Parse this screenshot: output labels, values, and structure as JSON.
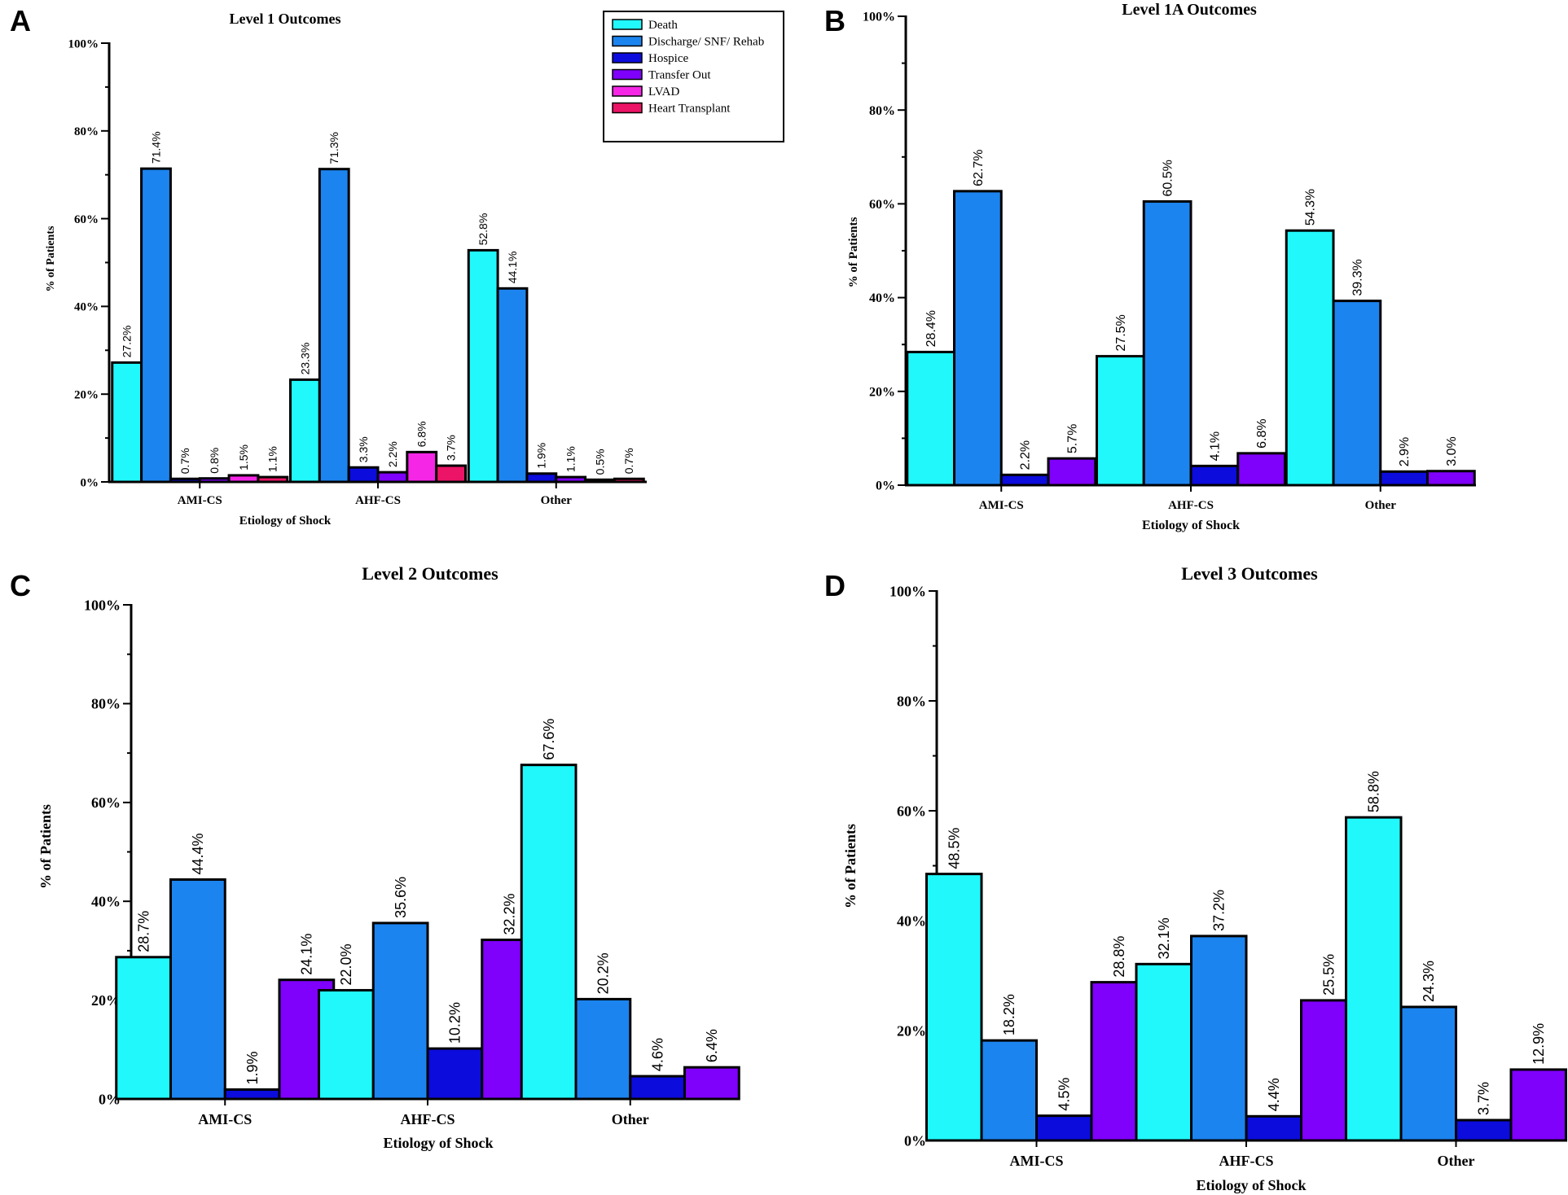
{
  "colors": {
    "Death": "#21f8fb",
    "Discharge/ SNF/ Rehab": "#1c84ef",
    "Hospice": "#0c0cdc",
    "Transfer Out": "#7f00fb",
    "LVAD": "#f526e6",
    "Heart Transplant": "#ec1466"
  },
  "chart_data": [
    {
      "panel": "A",
      "type": "bar",
      "title": "Level 1 Outcomes",
      "xlabel": "Etiology of Shock",
      "ylabel": "% of Patients",
      "ylim": [
        0,
        100
      ],
      "yticks": [
        "0%",
        "20%",
        "40%",
        "60%",
        "80%",
        "100%"
      ],
      "categories": [
        "AMI-CS",
        "AHF-CS",
        "Other"
      ],
      "series": [
        {
          "name": "Death",
          "values": [
            27.2,
            23.3,
            52.8
          ],
          "labels": [
            "27.2%",
            "23.3%",
            "52.8%"
          ]
        },
        {
          "name": "Discharge/ SNF/ Rehab",
          "values": [
            71.4,
            71.3,
            44.1
          ],
          "labels": [
            "71.4%",
            "71.3%",
            "44.1%"
          ]
        },
        {
          "name": "Hospice",
          "values": [
            0.7,
            3.3,
            1.9
          ],
          "labels": [
            "0.7%",
            "3.3%",
            "1.9%"
          ]
        },
        {
          "name": "Transfer Out",
          "values": [
            0.8,
            2.2,
            1.1
          ],
          "labels": [
            "0.8%",
            "2.2%",
            "1.1%"
          ]
        },
        {
          "name": "LVAD",
          "values": [
            1.5,
            6.8,
            0.5
          ],
          "labels": [
            "1.5%",
            "6.8%",
            "0.5%"
          ]
        },
        {
          "name": "Heart Transplant",
          "values": [
            1.1,
            3.7,
            0.7
          ],
          "labels": [
            "1.1%",
            "3.7%",
            "0.7%"
          ]
        }
      ],
      "legend": {
        "position": "top-right",
        "entries": [
          "Death",
          "Discharge/ SNF/ Rehab",
          "Hospice",
          "Transfer Out",
          "LVAD",
          "Heart Transplant"
        ]
      }
    },
    {
      "panel": "B",
      "type": "bar",
      "title": "Level 1A Outcomes",
      "xlabel": "Etiology of Shock",
      "ylabel": "% of Patients",
      "ylim": [
        0,
        100
      ],
      "yticks": [
        "0%",
        "20%",
        "40%",
        "60%",
        "80%",
        "100%"
      ],
      "categories": [
        "AMI-CS",
        "AHF-CS",
        "Other"
      ],
      "series": [
        {
          "name": "Death",
          "values": [
            28.4,
            27.5,
            54.3
          ],
          "labels": [
            "28.4%",
            "27.5%",
            "54.3%"
          ]
        },
        {
          "name": "Discharge/ SNF/ Rehab",
          "values": [
            62.7,
            60.5,
            39.3
          ],
          "labels": [
            "62.7%",
            "60.5%",
            "39.3%"
          ]
        },
        {
          "name": "Hospice",
          "values": [
            2.2,
            4.1,
            2.9
          ],
          "labels": [
            "2.2%",
            "4.1%",
            "2.9%"
          ]
        },
        {
          "name": "Transfer Out",
          "values": [
            5.7,
            6.8,
            3.0
          ],
          "labels": [
            "5.7%",
            "6.8%",
            "3.0%"
          ]
        }
      ]
    },
    {
      "panel": "C",
      "type": "bar",
      "title": "Level 2 Outcomes",
      "xlabel": "Etiology of Shock",
      "ylabel": "% of Patients",
      "ylim": [
        0,
        100
      ],
      "yticks": [
        "0%",
        "20%",
        "40%",
        "60%",
        "80%",
        "100%"
      ],
      "categories": [
        "AMI-CS",
        "AHF-CS",
        "Other"
      ],
      "series": [
        {
          "name": "Death",
          "values": [
            28.7,
            22.0,
            67.6
          ],
          "labels": [
            "28.7%",
            "22.0%",
            "67.6%"
          ]
        },
        {
          "name": "Discharge/ SNF/ Rehab",
          "values": [
            44.4,
            35.6,
            20.2
          ],
          "labels": [
            "44.4%",
            "35.6%",
            "20.2%"
          ]
        },
        {
          "name": "Hospice",
          "values": [
            1.9,
            10.2,
            4.6
          ],
          "labels": [
            "1.9%",
            "10.2%",
            "4.6%"
          ]
        },
        {
          "name": "Transfer Out",
          "values": [
            24.1,
            32.2,
            6.4
          ],
          "labels": [
            "24.1%",
            "32.2%",
            "6.4%"
          ]
        }
      ]
    },
    {
      "panel": "D",
      "type": "bar",
      "title": "Level 3 Outcomes",
      "xlabel": "Etiology of Shock",
      "ylabel": "% of Patients",
      "ylim": [
        0,
        100
      ],
      "yticks": [
        "0%",
        "20%",
        "40%",
        "60%",
        "80%",
        "100%"
      ],
      "categories": [
        "AMI-CS",
        "AHF-CS",
        "Other"
      ],
      "series": [
        {
          "name": "Death",
          "values": [
            48.5,
            32.1,
            58.8
          ],
          "labels": [
            "48.5%",
            "32.1%",
            "58.8%"
          ]
        },
        {
          "name": "Discharge/ SNF/ Rehab",
          "values": [
            18.2,
            37.2,
            24.3
          ],
          "labels": [
            "18.2%",
            "37.2%",
            "24.3%"
          ]
        },
        {
          "name": "Hospice",
          "values": [
            4.5,
            4.4,
            3.7
          ],
          "labels": [
            "4.5%",
            "4.4%",
            "3.7%"
          ]
        },
        {
          "name": "Transfer Out",
          "values": [
            28.8,
            25.5,
            12.9
          ],
          "labels": [
            "28.8%",
            "25.5%",
            "12.9%"
          ]
        }
      ]
    }
  ]
}
